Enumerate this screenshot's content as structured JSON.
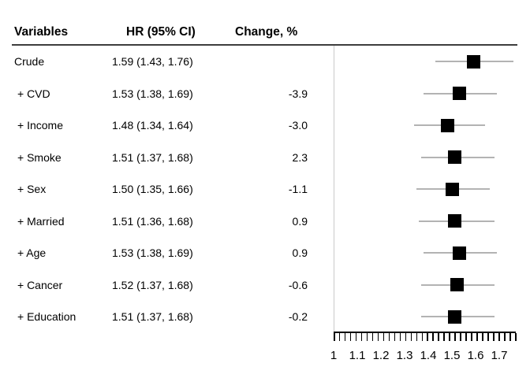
{
  "chart_data": {
    "type": "scatter",
    "subtype": "forest-plot",
    "title": "",
    "columns": [
      "Variables",
      "HR (95% CI)",
      "Change, %"
    ],
    "rows": [
      {
        "variable": "Crude",
        "hr_ci_text": "1.59 (1.43, 1.76)",
        "change_pct": "",
        "hr": 1.59,
        "ci_low": 1.43,
        "ci_high": 1.76
      },
      {
        "variable": "+ CVD",
        "hr_ci_text": "1.53 (1.38, 1.69)",
        "change_pct": "-3.9",
        "hr": 1.53,
        "ci_low": 1.38,
        "ci_high": 1.69
      },
      {
        "variable": "+ Income",
        "hr_ci_text": "1.48 (1.34, 1.64)",
        "change_pct": "-3.0",
        "hr": 1.48,
        "ci_low": 1.34,
        "ci_high": 1.64
      },
      {
        "variable": "+ Smoke",
        "hr_ci_text": "1.51 (1.37, 1.68)",
        "change_pct": "2.3",
        "hr": 1.51,
        "ci_low": 1.37,
        "ci_high": 1.68
      },
      {
        "variable": "+ Sex",
        "hr_ci_text": "1.50 (1.35, 1.66)",
        "change_pct": "-1.1",
        "hr": 1.5,
        "ci_low": 1.35,
        "ci_high": 1.66
      },
      {
        "variable": "+ Married",
        "hr_ci_text": "1.51 (1.36, 1.68)",
        "change_pct": "0.9",
        "hr": 1.51,
        "ci_low": 1.36,
        "ci_high": 1.68
      },
      {
        "variable": "+ Age",
        "hr_ci_text": "1.53 (1.38, 1.69)",
        "change_pct": "0.9",
        "hr": 1.53,
        "ci_low": 1.38,
        "ci_high": 1.69
      },
      {
        "variable": "+ Cancer",
        "hr_ci_text": "1.52 (1.37, 1.68)",
        "change_pct": "-0.6",
        "hr": 1.52,
        "ci_low": 1.37,
        "ci_high": 1.68
      },
      {
        "variable": "+ Education",
        "hr_ci_text": "1.51 (1.37, 1.68)",
        "change_pct": "-0.2",
        "hr": 1.51,
        "ci_low": 1.37,
        "ci_high": 1.68
      }
    ],
    "x_axis": {
      "tick_labels": [
        "1",
        "1.1",
        "1.2",
        "1.3",
        "1.4",
        "1.5",
        "1.6",
        "1.7"
      ],
      "tick_values": [
        1,
        1.1,
        1.2,
        1.3,
        1.4,
        1.5,
        1.6,
        1.7
      ],
      "min": 1,
      "max": 1.77,
      "minor_tick_count": 34
    },
    "legend": "none",
    "grid": "off",
    "marker_shape": "square",
    "colors": {
      "marker": "#000000",
      "ci_line": "#b3b3b3",
      "reference_line": "#c9c9c9",
      "header_rule": "#3d3d3d",
      "text": "#000000"
    }
  }
}
